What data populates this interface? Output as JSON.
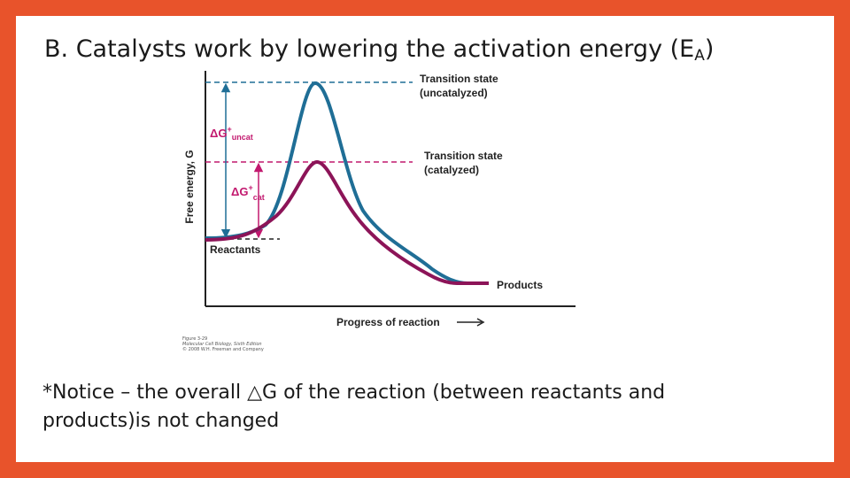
{
  "slide": {
    "title_main": "B.  Catalysts work by lowering the activation energy (E",
    "title_subscript": "A",
    "title_end": ")"
  },
  "diagram": {
    "y_axis_label": "Free energy, G",
    "x_axis_label": "Progress of reaction",
    "ts_uncat_line1": "Transition state",
    "ts_uncat_line2": "(uncatalyzed)",
    "ts_cat_line1": "Transition state",
    "ts_cat_line2": "(catalyzed)",
    "dg_uncat_symbol": "ΔG",
    "dg_uncat_sup": "+",
    "dg_uncat_sub": "uncat",
    "dg_cat_symbol": "ΔG",
    "dg_cat_sup": "+",
    "dg_cat_sub": "cat",
    "reactants_label": "Reactants",
    "products_label": "Products",
    "caption": [
      "Figure 3-29",
      "Molecular Cell Biology, Sixth Edition",
      "© 2008 W.H. Freeman and Company"
    ],
    "colors": {
      "uncatalyzed": "#1f6e96",
      "catalyzed": "#8c1458",
      "axis": "#222222"
    }
  },
  "note": {
    "line1": "*Notice – the overall △G of the reaction (between reactants and",
    "line2": "products)is not changed"
  }
}
